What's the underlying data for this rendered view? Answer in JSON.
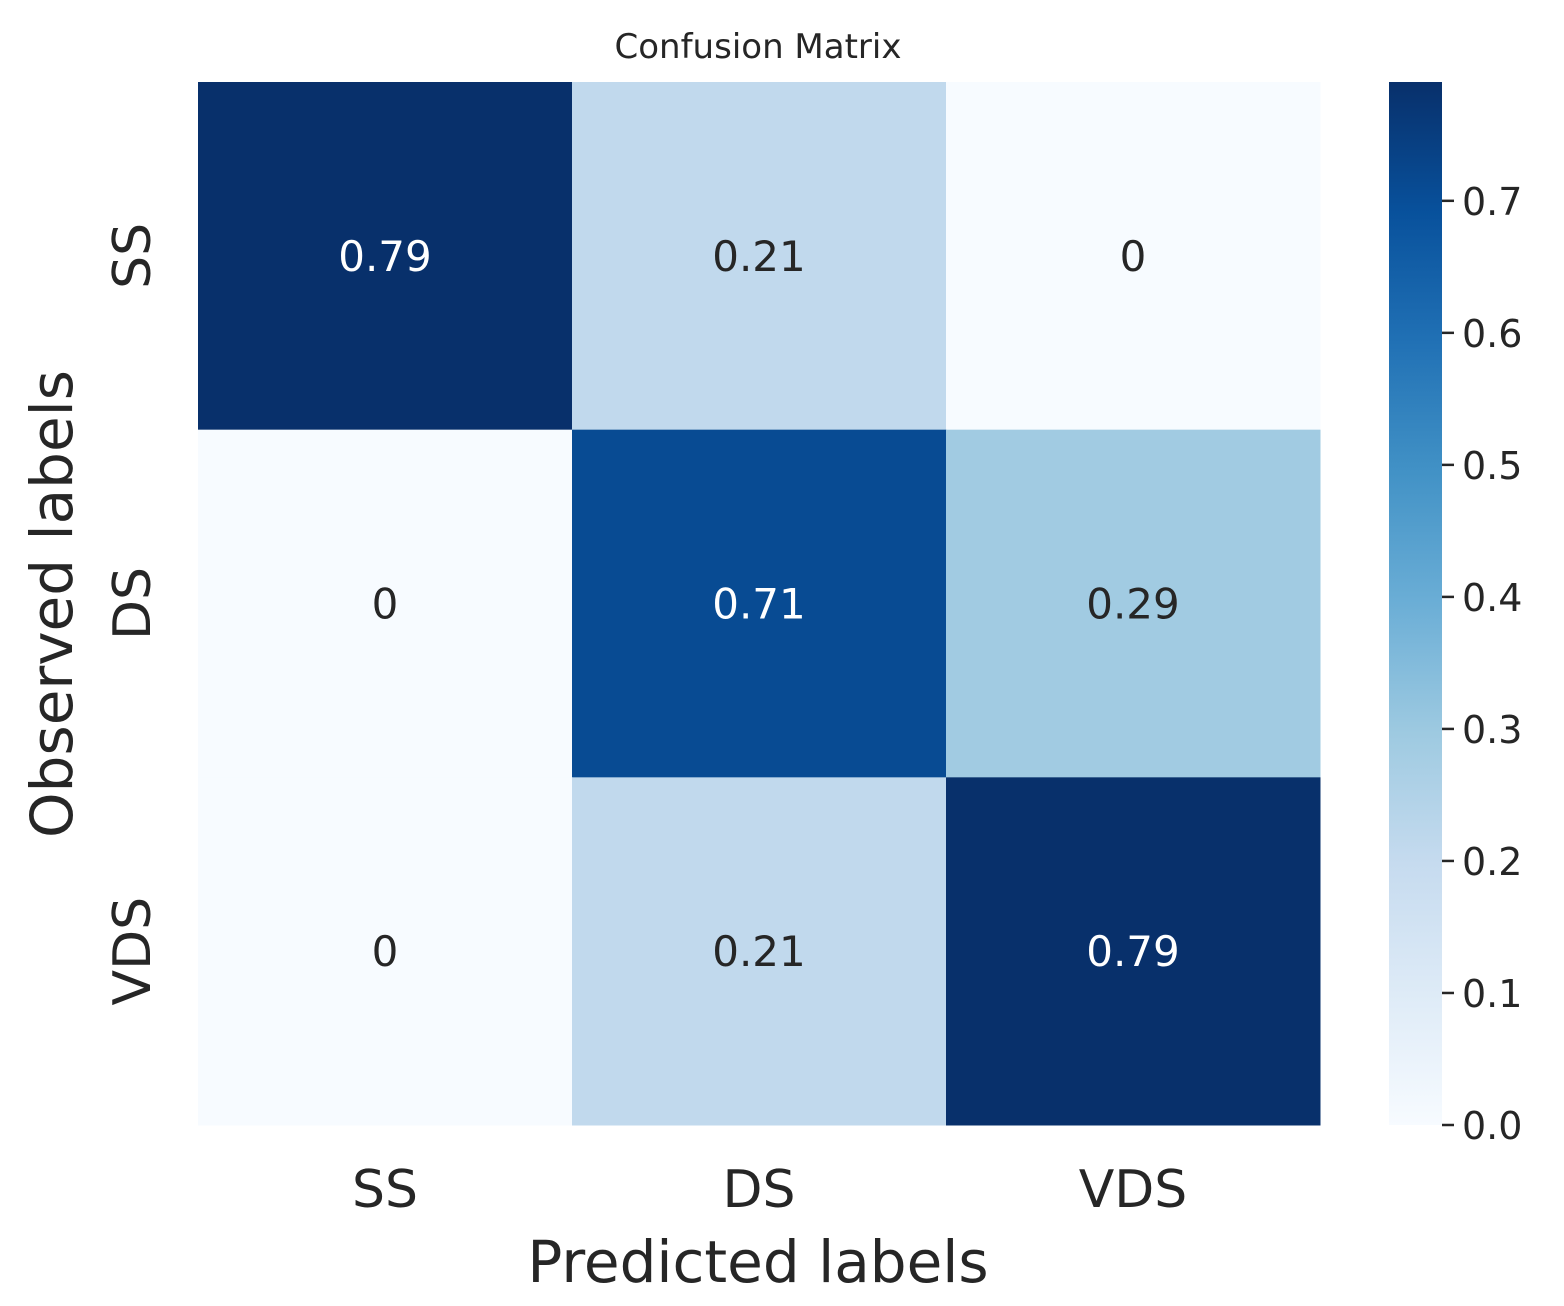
{
  "chart_data": {
    "type": "heatmap",
    "title": "Confusion Matrix",
    "xlabel": "Predicted labels",
    "ylabel": "Observed labels",
    "x_categories": [
      "SS",
      "DS",
      "VDS"
    ],
    "y_categories": [
      "SS",
      "DS",
      "VDS"
    ],
    "values": [
      [
        0.79,
        0.21,
        0
      ],
      [
        0,
        0.71,
        0.29
      ],
      [
        0,
        0.21,
        0.79
      ]
    ],
    "value_labels": [
      [
        "0.79",
        "0.21",
        "0"
      ],
      [
        "0",
        "0.71",
        "0.29"
      ],
      [
        "0",
        "0.21",
        "0.79"
      ]
    ],
    "colormap": "Blues",
    "colorbar": {
      "range": [
        0,
        0.79
      ],
      "ticks": [
        0.0,
        0.1,
        0.2,
        0.3,
        0.4,
        0.5,
        0.6,
        0.7
      ],
      "tick_labels": [
        "0.0",
        "0.1",
        "0.2",
        "0.3",
        "0.4",
        "0.5",
        "0.6",
        "0.7"
      ]
    },
    "colors": {
      "cmap_stops": [
        "#f7fbff",
        "#deebf7",
        "#c6dbef",
        "#9ecae1",
        "#6baed6",
        "#4292c6",
        "#2171b5",
        "#08519c",
        "#08306b"
      ],
      "text_dark": "#262626",
      "text_light": "#ffffff"
    }
  }
}
